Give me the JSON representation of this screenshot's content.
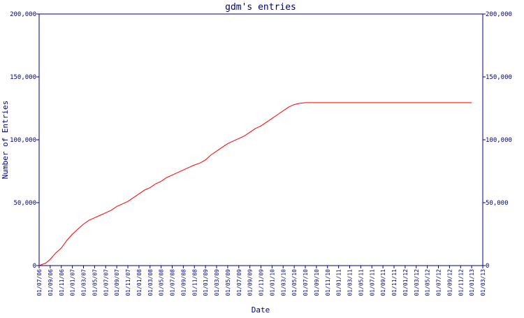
{
  "chart_data": {
    "type": "line",
    "title": "gdm's entries",
    "xlabel": "Date",
    "ylabel": "Number of Entries",
    "ylim": [
      0,
      200000
    ],
    "y_ticks": [
      {
        "value": 0,
        "label": "0"
      },
      {
        "value": 50000,
        "label": "50,000"
      },
      {
        "value": 100000,
        "label": "100,000"
      },
      {
        "value": 150000,
        "label": "150,000"
      },
      {
        "value": 200000,
        "label": "200,000"
      }
    ],
    "x_tick_labels": [
      "01/07/06",
      "01/09/06",
      "01/11/06",
      "01/01/07",
      "01/03/07",
      "01/05/07",
      "01/07/07",
      "01/09/07",
      "01/11/07",
      "01/01/08",
      "01/03/08",
      "01/05/08",
      "01/07/08",
      "01/09/08",
      "01/11/08",
      "01/01/09",
      "01/03/09",
      "01/05/09",
      "01/07/09",
      "01/09/09",
      "01/11/09",
      "01/01/10",
      "01/03/10",
      "01/05/10",
      "01/07/10",
      "01/09/10",
      "01/11/10",
      "01/01/11",
      "01/03/11",
      "01/05/11",
      "01/07/11",
      "01/09/11",
      "01/11/11",
      "01/01/12",
      "01/03/12",
      "01/05/12",
      "01/07/12",
      "01/09/12",
      "01/11/12",
      "01/01/13",
      "01/03/13"
    ],
    "x_index_range": [
      0,
      40
    ],
    "series": [
      {
        "color": "#ff0000",
        "x": [
          0,
          0.6,
          1,
          1.5,
          2,
          2.5,
          3,
          3.5,
          4,
          4.5,
          5,
          5.5,
          6,
          6.5,
          7,
          7.5,
          8,
          8.5,
          9,
          9.5,
          10,
          10.5,
          11,
          11.5,
          12,
          12.5,
          13,
          13.5,
          14,
          14.5,
          15,
          15.5,
          16,
          16.5,
          17,
          17.5,
          18,
          18.5,
          19,
          19.5,
          20,
          20.5,
          21,
          21.5,
          22,
          22.5,
          23,
          23.5,
          24,
          25,
          26,
          30,
          35,
          39
        ],
        "y": [
          0,
          2000,
          5000,
          10000,
          14000,
          20000,
          25000,
          29000,
          33000,
          36000,
          38000,
          40000,
          42000,
          44000,
          47000,
          49000,
          51000,
          54000,
          57000,
          60000,
          62000,
          65000,
          67000,
          70000,
          72000,
          74000,
          76000,
          78000,
          80000,
          81500,
          84000,
          88000,
          91000,
          94000,
          97000,
          99000,
          101000,
          103000,
          106000,
          109000,
          111000,
          114000,
          117000,
          120000,
          123000,
          126000,
          128000,
          129000,
          129500,
          129500,
          129500,
          129500,
          129500,
          129500
        ]
      }
    ],
    "grid": false,
    "legend": "none"
  }
}
